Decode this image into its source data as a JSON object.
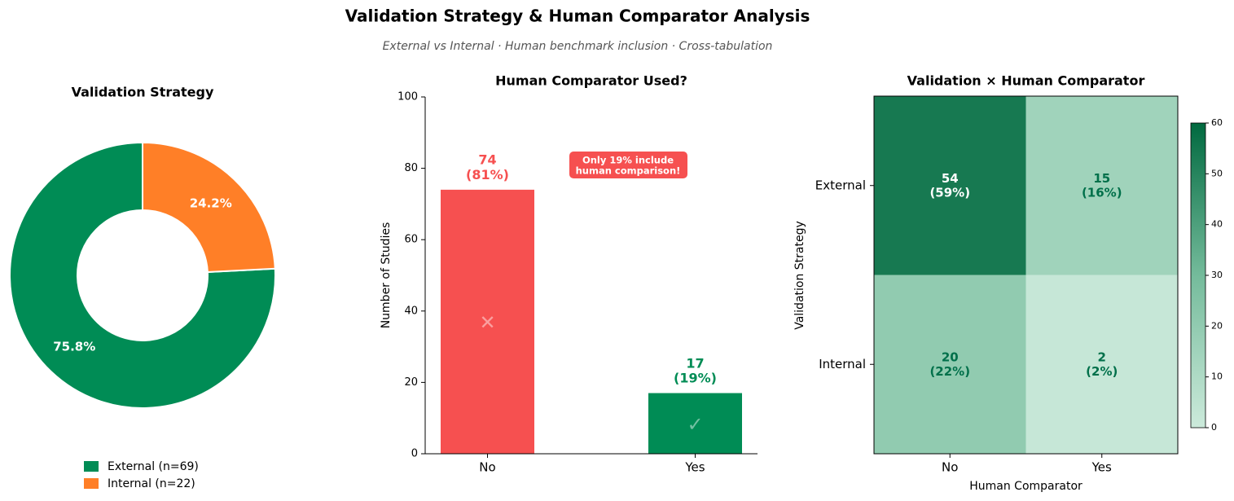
{
  "title": "Validation Strategy & Human Comparator Analysis",
  "subtitle": "External vs Internal · Human benchmark inclusion · Cross-tabulation",
  "chart_data": [
    {
      "type": "pie",
      "title": "Validation Strategy",
      "donut": true,
      "categories": [
        "External (n=69)",
        "Internal (n=22)"
      ],
      "values": [
        75.8,
        24.2
      ],
      "value_labels": [
        "75.8%",
        "24.2%"
      ],
      "colors": [
        "#008c55",
        "#ff7f27"
      ],
      "legend": "lower center"
    },
    {
      "type": "bar",
      "title": "Human Comparator Used?",
      "ylabel": "Number of Studies",
      "categories": [
        "No",
        "Yes"
      ],
      "values": [
        74,
        17
      ],
      "value_labels": [
        "74\n(81%)",
        "17\n(19%)"
      ],
      "markers": [
        "✕",
        "✓"
      ],
      "colors": [
        "#f65050",
        "#008c55"
      ],
      "ylim": [
        0,
        100
      ],
      "yticks": [
        0,
        20,
        40,
        60,
        80,
        100
      ],
      "annotation": "Only 19% include\nhuman comparison!"
    },
    {
      "type": "heatmap",
      "title": "Validation × Human Comparator",
      "xlabel": "Human Comparator",
      "ylabel": "Validation Strategy",
      "x": [
        "No",
        "Yes"
      ],
      "y": [
        "External",
        "Internal"
      ],
      "values": [
        [
          54,
          15
        ],
        [
          20,
          2
        ]
      ],
      "value_labels": [
        [
          "54\n(59%)",
          "15\n(16%)"
        ],
        [
          "20\n(22%)",
          "2\n(2%)"
        ]
      ],
      "colormap": [
        "#cceadb",
        "#74bb9b",
        "#00693f"
      ],
      "clim": [
        0,
        60
      ],
      "cticks": [
        0,
        10,
        20,
        30,
        40,
        50,
        60
      ]
    }
  ]
}
